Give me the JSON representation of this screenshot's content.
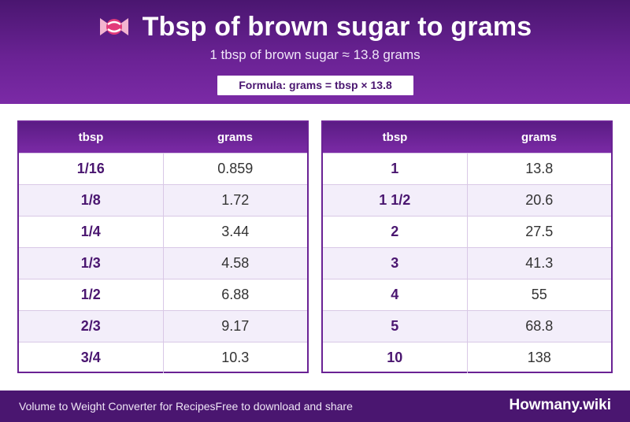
{
  "header": {
    "title": "Tbsp of brown sugar to grams",
    "subtitle": "1 tbsp of brown sugar ≈ 13.8 grams",
    "formula": "Formula: grams = tbsp × 13.8",
    "icon": "candy-icon"
  },
  "columns": {
    "tbsp": "tbsp",
    "grams": "grams"
  },
  "left_table": {
    "rows": [
      {
        "tbsp": "1/16",
        "grams": "0.859"
      },
      {
        "tbsp": "1/8",
        "grams": "1.72"
      },
      {
        "tbsp": "1/4",
        "grams": "3.44"
      },
      {
        "tbsp": "1/3",
        "grams": "4.58"
      },
      {
        "tbsp": "1/2",
        "grams": "6.88"
      },
      {
        "tbsp": "2/3",
        "grams": "9.17"
      },
      {
        "tbsp": "3/4",
        "grams": "10.3"
      }
    ]
  },
  "right_table": {
    "rows": [
      {
        "tbsp": "1",
        "grams": "13.8"
      },
      {
        "tbsp": "1 1/2",
        "grams": "20.6"
      },
      {
        "tbsp": "2",
        "grams": "27.5"
      },
      {
        "tbsp": "3",
        "grams": "41.3"
      },
      {
        "tbsp": "4",
        "grams": "55"
      },
      {
        "tbsp": "5",
        "grams": "68.8"
      },
      {
        "tbsp": "10",
        "grams": "138"
      }
    ]
  },
  "footer": {
    "left_text": "Volume to Weight Converter for Recipes",
    "middle_text": "Free to download and share",
    "brand": "Howmany.wiki"
  },
  "colors": {
    "primary": "#6a2294",
    "dark": "#4a1670",
    "row_alt": "#f3eefa"
  }
}
